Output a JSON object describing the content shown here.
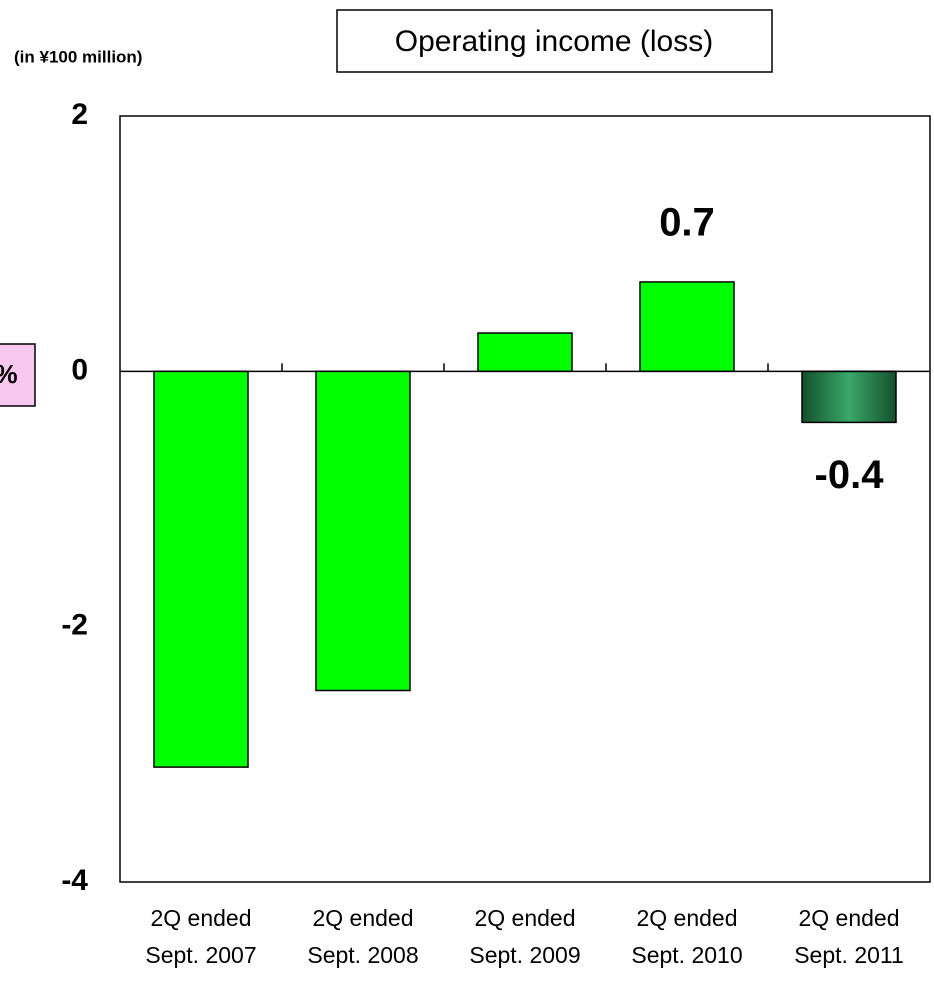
{
  "chart_data": {
    "type": "bar",
    "title": "Operating income (loss)",
    "unit_label": "(in ¥100 million)",
    "side_label": "%",
    "categories": [
      [
        "2Q ended",
        "Sept. 2007"
      ],
      [
        "2Q ended",
        "Sept. 2008"
      ],
      [
        "2Q ended",
        "Sept. 2009"
      ],
      [
        "2Q ended",
        "Sept. 2010"
      ],
      [
        "2Q ended",
        "Sept. 2011"
      ]
    ],
    "values": [
      -3.1,
      -2.5,
      0.3,
      0.7,
      -0.4
    ],
    "value_labels": [
      null,
      null,
      null,
      "0.7",
      "-0.4"
    ],
    "colors": [
      "#00ff00",
      "#00ff00",
      "#00ff00",
      "#00ff00",
      "#2e8b57"
    ],
    "ylim": [
      -4,
      2
    ],
    "yticks": [
      -4,
      -2,
      0,
      2
    ],
    "grid": false
  }
}
